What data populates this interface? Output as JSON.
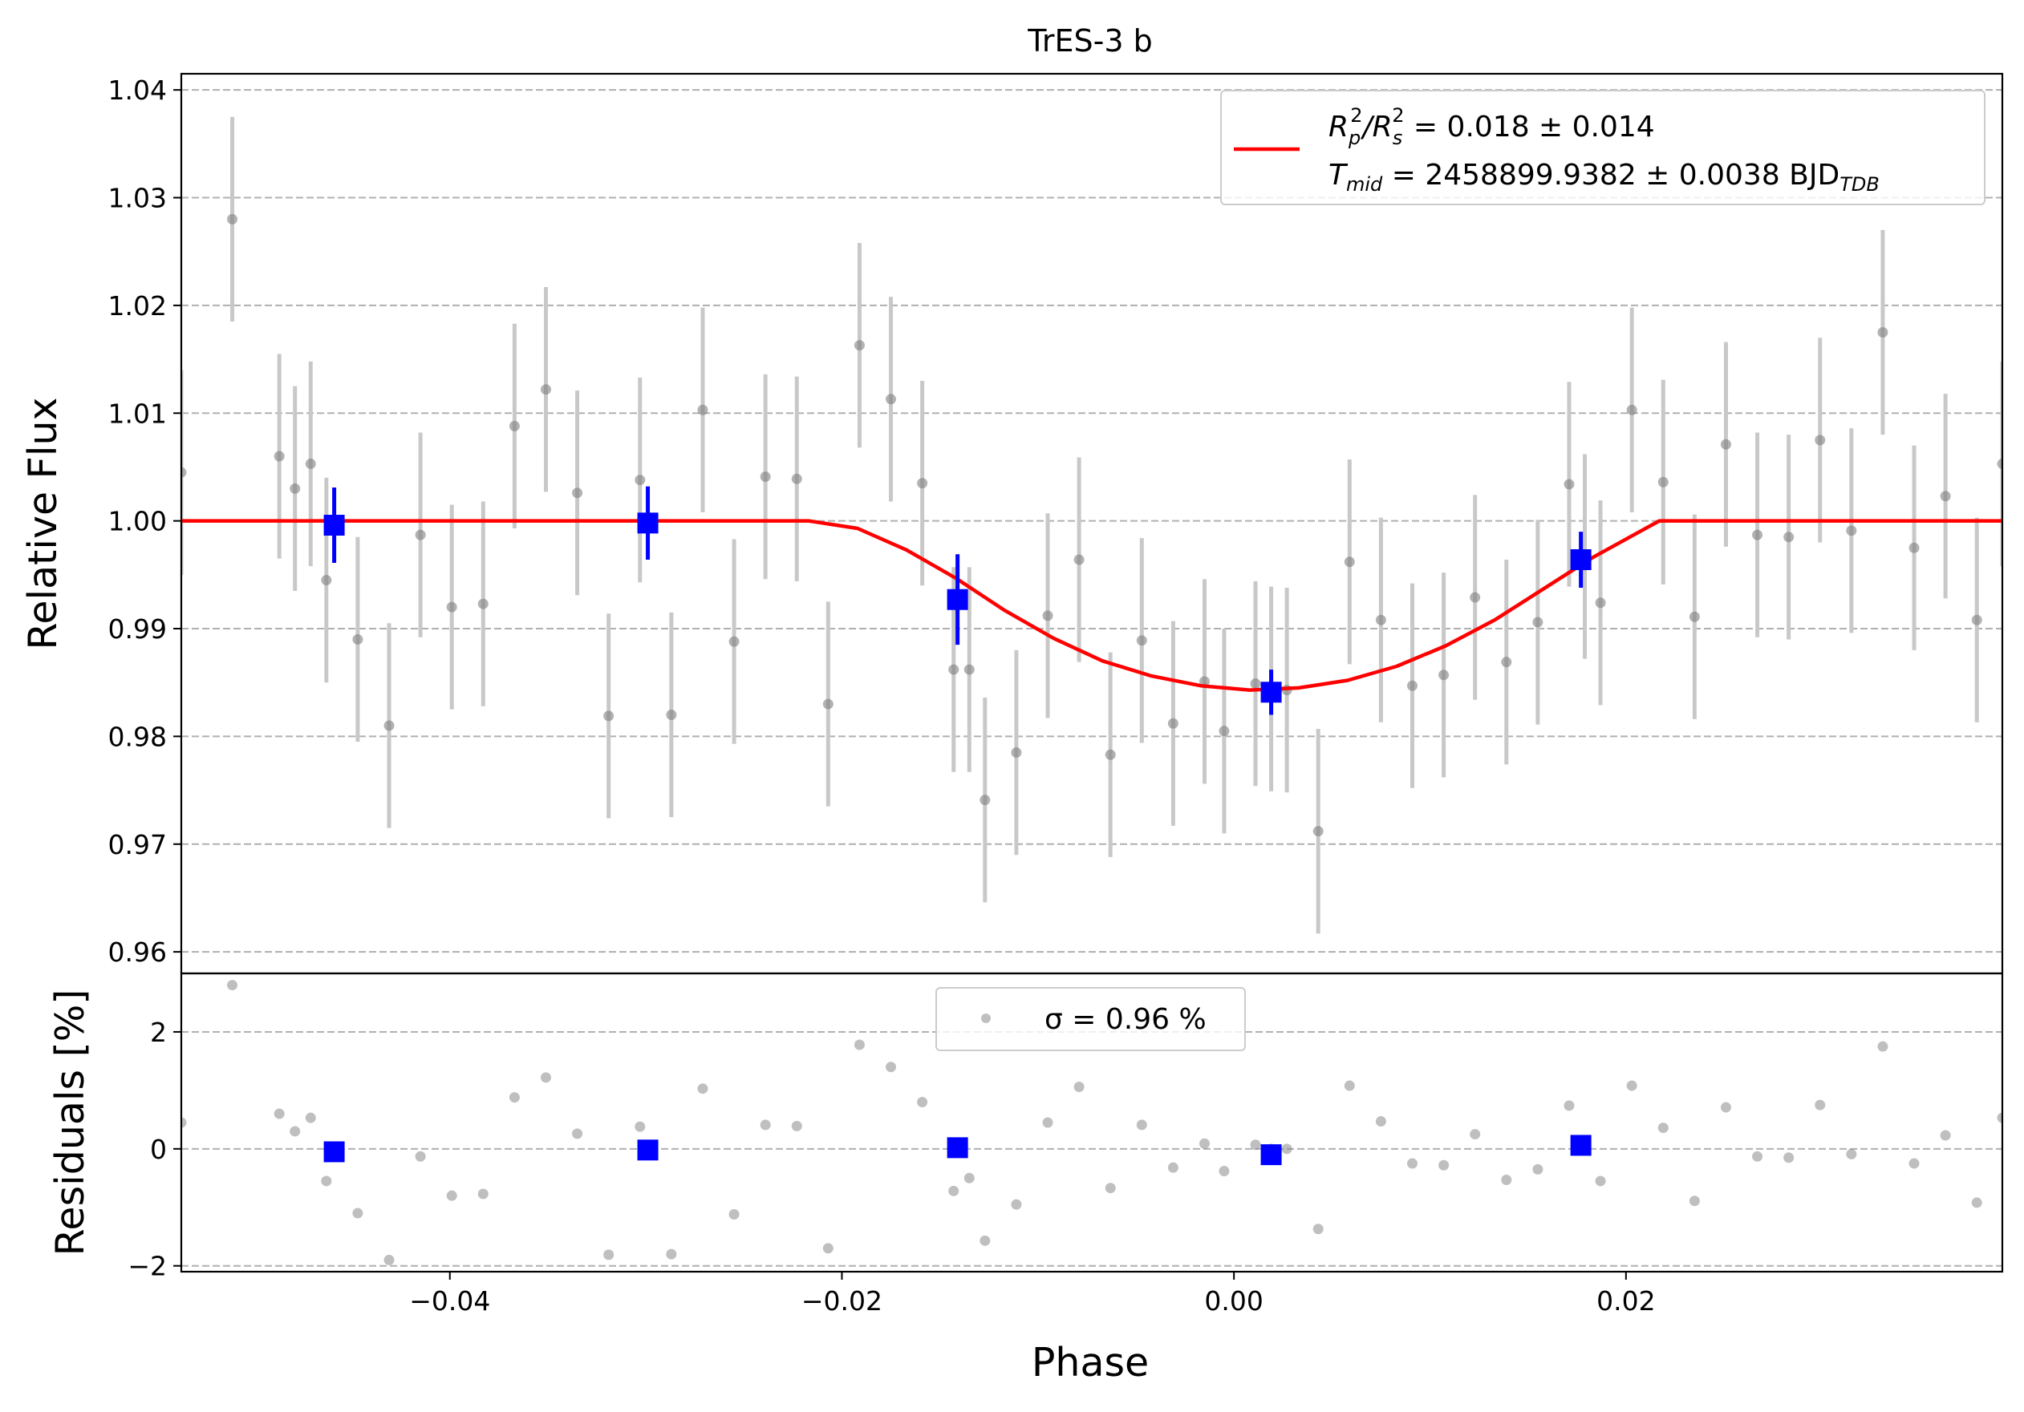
{
  "chart_data": [
    {
      "type": "scatter",
      "panel": "main",
      "title": "TrES-3 b",
      "xlabel": "",
      "ylabel": "Relative Flux",
      "xlim": [
        -0.0537,
        0.0392
      ],
      "ylim": [
        0.958,
        1.0415
      ],
      "yticks": [
        0.96,
        0.97,
        0.98,
        0.99,
        1.0,
        1.01,
        1.02,
        1.03,
        1.04
      ],
      "ytick_labels": [
        "0.96",
        "0.97",
        "0.98",
        "0.99",
        "1.00",
        "1.01",
        "1.02",
        "1.03",
        "1.04"
      ],
      "grid": "y-dashed",
      "legend_position": "top-right",
      "legend": [
        {
          "label_parts": [
            "R",
            "p",
            "2",
            "/R",
            "s",
            "2",
            " = 0.018 ± 0.014"
          ]
        },
        {
          "label_parts": [
            "T",
            "mid",
            " = 2458899.9382 ± 0.0038 BJD",
            "TDB"
          ]
        }
      ],
      "series": [
        {
          "name": "data",
          "color": "#7f7f7f",
          "errorbar_color": "#c8c8c8",
          "marker": "circle",
          "x": [
            -0.0537,
            -0.0511,
            -0.0487,
            -0.0479,
            -0.0471,
            -0.0463,
            -0.0447,
            -0.0431,
            -0.0415,
            -0.0399,
            -0.0383,
            -0.0367,
            -0.0351,
            -0.0335,
            -0.0319,
            -0.0303,
            -0.0287,
            -0.0271,
            -0.0255,
            -0.0239,
            -0.0223,
            -0.0207,
            -0.0191,
            -0.0175,
            -0.0159,
            -0.0143,
            -0.0135,
            -0.0127,
            -0.0111,
            -0.0095,
            -0.0079,
            -0.0063,
            -0.0047,
            -0.0031,
            -0.0015,
            -0.0005,
            0.0011,
            0.0019,
            0.0027,
            0.0043,
            0.0059,
            0.0075,
            0.0091,
            0.0107,
            0.0123,
            0.0139,
            0.0155,
            0.0171,
            0.0179,
            0.0187,
            0.0203,
            0.0219,
            0.0235,
            0.0251,
            0.0267,
            0.0283,
            0.0299,
            0.0315,
            0.0331,
            0.0347,
            0.0363,
            0.0379,
            0.0392
          ],
          "y": [
            1.0045,
            1.028,
            1.006,
            1.003,
            1.0053,
            0.9945,
            0.989,
            0.981,
            0.9987,
            0.992,
            0.9923,
            1.0088,
            1.0122,
            1.0026,
            0.9819,
            1.0038,
            0.982,
            1.0103,
            0.9888,
            1.0041,
            1.0039,
            0.983,
            1.0163,
            1.0113,
            1.0035,
            0.9862,
            0.9862,
            0.9741,
            0.9785,
            0.9912,
            0.9964,
            0.9783,
            0.9889,
            0.9812,
            0.9851,
            0.9805,
            0.9849,
            0.9844,
            0.9843,
            0.9712,
            0.9962,
            0.9908,
            0.9847,
            0.9857,
            0.9929,
            0.9869,
            0.9906,
            1.0034,
            0.9967,
            0.9924,
            1.0103,
            1.0036,
            0.9911,
            1.0071,
            0.9987,
            0.9985,
            1.0075,
            0.9991,
            1.0175,
            0.9975,
            1.0023,
            0.9908,
            1.0053
          ],
          "yerr": 0.0095
        },
        {
          "name": "binned",
          "color": "#0000ff",
          "marker": "square",
          "x": [
            -0.0459,
            -0.0299,
            -0.0141,
            0.0019,
            0.0177
          ],
          "y": [
            0.9996,
            0.9998,
            0.9927,
            0.9841,
            0.9964
          ],
          "yerr": [
            0.0035,
            0.0034,
            0.0042,
            0.0021,
            0.0026
          ]
        },
        {
          "name": "model",
          "color": "#ff0000",
          "type": "line",
          "x": [
            -0.0537,
            -0.0217,
            -0.0192,
            -0.0167,
            -0.0142,
            -0.0117,
            -0.0092,
            -0.0067,
            -0.0042,
            -0.0017,
            0.0008,
            0.0033,
            0.0058,
            0.0083,
            0.0108,
            0.0133,
            0.0158,
            0.0183,
            0.0208,
            0.0217,
            0.0392
          ],
          "y": [
            1.0,
            1.0,
            0.9993,
            0.9973,
            0.9947,
            0.9917,
            0.9891,
            0.987,
            0.9856,
            0.9847,
            0.9843,
            0.9845,
            0.9852,
            0.9865,
            0.9884,
            0.9908,
            0.9937,
            0.9966,
            0.9991,
            1.0,
            1.0
          ]
        }
      ]
    },
    {
      "type": "scatter",
      "panel": "residuals",
      "xlabel": "Phase",
      "ylabel": "Residuals [%]",
      "xlim": [
        -0.0537,
        0.0392
      ],
      "ylim": [
        -2.1,
        3.0
      ],
      "xticks": [
        -0.04,
        -0.02,
        0.0,
        0.02
      ],
      "xtick_labels": [
        "−0.04",
        "−0.02",
        "0.00",
        "0.02"
      ],
      "yticks": [
        -2,
        0,
        2
      ],
      "ytick_labels": [
        "−2",
        "0",
        "2"
      ],
      "grid": "y-dashed",
      "legend_position": "top-center",
      "legend": [
        {
          "label": "σ = 0.96 %"
        }
      ],
      "series": [
        {
          "name": "residuals",
          "color": "#7f7f7f",
          "marker": "circle",
          "x": [
            -0.0537,
            -0.0511,
            -0.0487,
            -0.0479,
            -0.0471,
            -0.0463,
            -0.0447,
            -0.0431,
            -0.0415,
            -0.0399,
            -0.0383,
            -0.0367,
            -0.0351,
            -0.0335,
            -0.0319,
            -0.0303,
            -0.0287,
            -0.0271,
            -0.0255,
            -0.0239,
            -0.0223,
            -0.0207,
            -0.0191,
            -0.0175,
            -0.0159,
            -0.0143,
            -0.0135,
            -0.0127,
            -0.0111,
            -0.0095,
            -0.0079,
            -0.0063,
            -0.0047,
            -0.0031,
            -0.0015,
            -0.0005,
            0.0011,
            0.0019,
            0.0027,
            0.0043,
            0.0059,
            0.0075,
            0.0091,
            0.0107,
            0.0123,
            0.0139,
            0.0155,
            0.0171,
            0.0179,
            0.0187,
            0.0203,
            0.0219,
            0.0235,
            0.0251,
            0.0267,
            0.0283,
            0.0299,
            0.0315,
            0.0331,
            0.0347,
            0.0363,
            0.0379,
            0.0392
          ],
          "y": [
            0.45,
            2.8,
            0.6,
            0.3,
            0.53,
            -0.55,
            -1.1,
            -1.9,
            -0.13,
            -0.8,
            -0.77,
            0.88,
            1.22,
            0.26,
            -1.81,
            0.38,
            -1.8,
            1.03,
            -1.12,
            0.41,
            0.39,
            -1.7,
            1.78,
            1.4,
            0.8,
            -0.72,
            -0.5,
            -1.57,
            -0.95,
            0.45,
            1.06,
            -0.67,
            0.41,
            -0.32,
            0.09,
            -0.38,
            0.07,
            0.0,
            0.0,
            -1.37,
            1.08,
            0.47,
            -0.25,
            -0.28,
            0.25,
            -0.53,
            -0.35,
            0.74,
            0.05,
            -0.55,
            1.08,
            0.36,
            -0.89,
            0.71,
            -0.13,
            -0.15,
            0.75,
            -0.09,
            1.75,
            -0.25,
            0.23,
            -0.92,
            0.53
          ]
        },
        {
          "name": "binned residuals",
          "color": "#0000ff",
          "marker": "square",
          "x": [
            -0.0459,
            -0.0299,
            -0.0141,
            0.0019,
            0.0177
          ],
          "y": [
            -0.05,
            -0.02,
            0.02,
            -0.1,
            0.06
          ]
        }
      ]
    }
  ]
}
